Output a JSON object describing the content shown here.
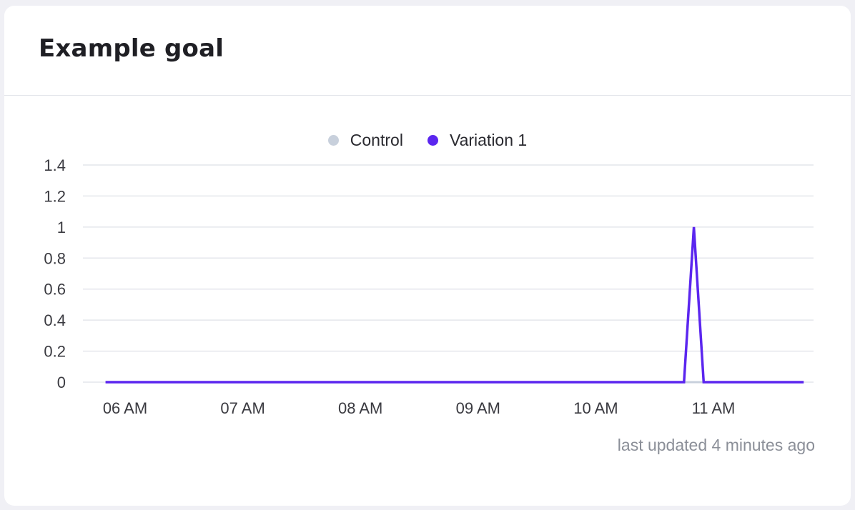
{
  "card": {
    "title": "Example goal",
    "last_updated": "last updated 4 minutes ago"
  },
  "colors": {
    "control": "#c8d0dc",
    "variation1": "#5b26ef",
    "grid": "#e4e6ec",
    "tick_text": "#3a3a40"
  },
  "chart_data": {
    "type": "line",
    "title": "",
    "xlabel": "",
    "ylabel": "",
    "ylim": [
      0,
      1.4
    ],
    "yticks": [
      "1.4",
      "1.2",
      "1",
      "0.8",
      "0.6",
      "0.4",
      "0.2",
      "0"
    ],
    "xticks": [
      "06 AM",
      "07 AM",
      "08 AM",
      "09 AM",
      "10 AM",
      "11 AM"
    ],
    "grid": true,
    "legend_position": "top-center",
    "series": [
      {
        "name": "Control",
        "color": "#c8d0dc",
        "points": [
          {
            "x": "05:50",
            "y": 0
          },
          {
            "x": "11:46",
            "y": 0
          }
        ]
      },
      {
        "name": "Variation 1",
        "color": "#5b26ef",
        "points": [
          {
            "x": "05:50",
            "y": 0
          },
          {
            "x": "10:45",
            "y": 0
          },
          {
            "x": "10:50",
            "y": 1
          },
          {
            "x": "10:55",
            "y": 0
          },
          {
            "x": "11:46",
            "y": 0
          }
        ]
      }
    ]
  }
}
